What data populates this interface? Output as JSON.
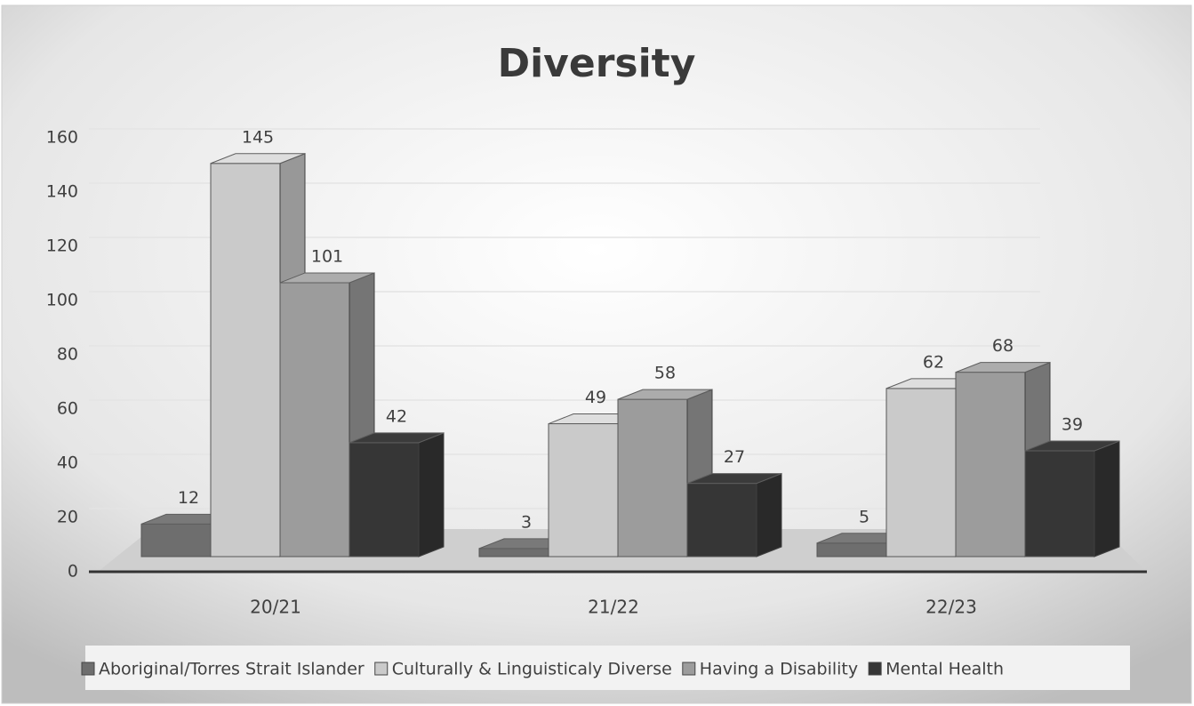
{
  "chart_data": {
    "type": "bar3d",
    "title": "Diversity",
    "categories": [
      "20/21",
      "21/22",
      "22/23"
    ],
    "series": [
      {
        "name": "Aboriginal/Torres Strait Islander",
        "color": "#6e6e6e",
        "values": [
          12,
          3,
          5
        ]
      },
      {
        "name": "Culturally & Linguisticaly Diverse",
        "color": "#cacaca",
        "values": [
          145,
          49,
          62
        ]
      },
      {
        "name": "Having a Disability",
        "color": "#9c9c9c",
        "values": [
          101,
          58,
          68
        ]
      },
      {
        "name": "Mental Health",
        "color": "#363636",
        "values": [
          42,
          27,
          39
        ]
      }
    ],
    "ylim": [
      0,
      160
    ],
    "yticks": [
      0,
      20,
      40,
      60,
      80,
      100,
      120,
      140,
      160
    ],
    "grid": true,
    "legend": "bottom"
  }
}
